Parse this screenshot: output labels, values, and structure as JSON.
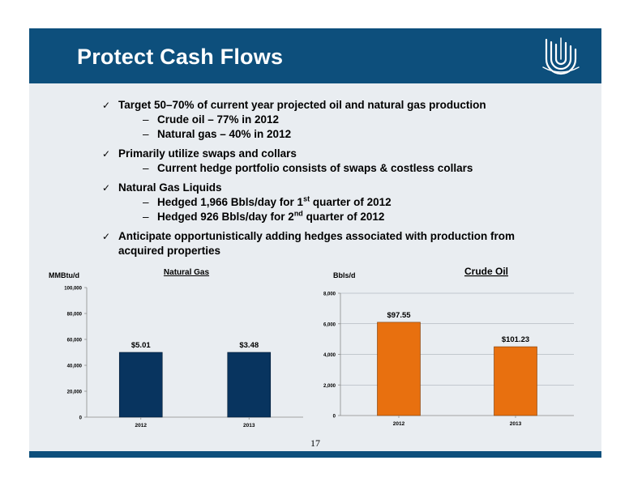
{
  "slide": {
    "title": "Protect Cash Flows",
    "page_number": "17"
  },
  "bullets": [
    {
      "text": "Target 50–70% of current year projected oil and natural gas production",
      "subs": [
        "Crude oil – 77% in 2012",
        "Natural gas – 40% in 2012"
      ]
    },
    {
      "text": "Primarily utilize swaps and collars",
      "subs": [
        "Current hedge portfolio consists of swaps & costless collars"
      ]
    },
    {
      "text": "Natural Gas Liquids",
      "subs": []
    },
    {
      "text": "Anticipate opportunistically adding hedges associated with production from acquired properties",
      "subs": []
    }
  ],
  "ngl_subs": [
    {
      "pre": "Hedged 1,966 Bbls/day for 1",
      "sup": "st",
      "post": " quarter of 2012"
    },
    {
      "pre": "Hedged 926 Bbls/day for 2",
      "sup": "nd",
      "post": " quarter of 2012"
    }
  ],
  "chart_data": [
    {
      "type": "bar",
      "title": "Natural Gas",
      "ylabel": "MMBtu/d",
      "categories": [
        "2012",
        "2013"
      ],
      "values": [
        50000,
        50000
      ],
      "data_labels": [
        "$5.01",
        "$3.48"
      ],
      "ylim": [
        0,
        100000
      ],
      "yticks": [
        0,
        20000,
        40000,
        60000,
        80000,
        100000
      ],
      "ytick_labels": [
        "0",
        "20,000",
        "40,000",
        "60,000",
        "80,000",
        "100,000"
      ],
      "color": "#08345f",
      "grid": false
    },
    {
      "type": "bar",
      "title": "Crude Oil",
      "ylabel": "Bbls/d",
      "categories": [
        "2012",
        "2013"
      ],
      "values": [
        6100,
        4500
      ],
      "data_labels": [
        "$97.55",
        "$101.23"
      ],
      "ylim": [
        0,
        8000
      ],
      "yticks": [
        0,
        2000,
        4000,
        6000,
        8000
      ],
      "ytick_labels": [
        "0",
        "2,000",
        "4,000",
        "6,000",
        "8,000"
      ],
      "color": "#e8700f",
      "grid": true
    }
  ]
}
